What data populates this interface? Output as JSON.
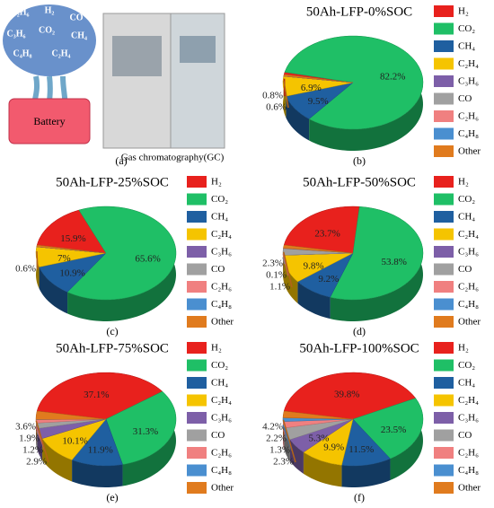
{
  "illustration": {
    "gases": [
      "C₂H₆",
      "H₂",
      "CO",
      "C₃H₆",
      "CO₂",
      "CH₄",
      "C₄H₈",
      "C₂H₄"
    ],
    "battery": "Battery",
    "instrument": "Gas chromatography(GC)",
    "panel": "(a)"
  },
  "chart_data": [
    {
      "type": "pie",
      "title": "50Ah-LFP-0%SOC",
      "panel": "(b)",
      "categories": [
        "H₂",
        "CO₂",
        "CH₄",
        "C₂H₄",
        "C₃H₆",
        "CO",
        "C₂H₆",
        "C₄H₈",
        "Other"
      ],
      "colors": [
        "#e8211d",
        "#1fbf66",
        "#1f5fa0",
        "#f5c400",
        "#7d5fa8",
        "#a0a0a0",
        "#f08080",
        "#4a8fd0",
        "#e07b1e"
      ],
      "values": [
        0.8,
        82.2,
        9.5,
        6.9,
        0,
        0,
        0,
        0,
        0.6
      ],
      "value_labels": [
        "0.8%",
        "82.2%",
        "9.5%",
        "6.9%",
        null,
        null,
        null,
        null,
        "0.6%"
      ]
    },
    {
      "type": "pie",
      "title": "50Ah-LFP-25%SOC",
      "panel": "(c)",
      "categories": [
        "H₂",
        "CO₂",
        "CH₄",
        "C₂H₄",
        "C₃H₆",
        "CO",
        "C₂H₆",
        "C₄H₈",
        "Other"
      ],
      "colors": [
        "#e8211d",
        "#1fbf66",
        "#1f5fa0",
        "#f5c400",
        "#7d5fa8",
        "#a0a0a0",
        "#f08080",
        "#4a8fd0",
        "#e07b1e"
      ],
      "values": [
        15.9,
        65.6,
        10.9,
        7,
        0,
        0,
        0,
        0,
        0.6
      ],
      "value_labels": [
        "15.9%",
        "65.6%",
        "10.9%",
        "7%",
        null,
        null,
        null,
        null,
        "0.6%"
      ]
    },
    {
      "type": "pie",
      "title": "50Ah-LFP-50%SOC",
      "panel": "(d)",
      "categories": [
        "H₂",
        "CO₂",
        "CH₄",
        "C₂H₄",
        "C₃H₆",
        "CO",
        "C₂H₆",
        "C₄H₈",
        "Other"
      ],
      "colors": [
        "#e8211d",
        "#1fbf66",
        "#1f5fa0",
        "#f5c400",
        "#7d5fa8",
        "#a0a0a0",
        "#f08080",
        "#4a8fd0",
        "#e07b1e"
      ],
      "values": [
        23.7,
        53.8,
        9.2,
        9.8,
        0,
        2.3,
        0.1,
        0,
        1.1
      ],
      "value_labels": [
        "23.7%",
        "53.8%",
        "9.2%",
        "9.8%",
        null,
        "2.3%",
        "0.1%",
        null,
        "1.1%"
      ]
    },
    {
      "type": "pie",
      "title": "50Ah-LFP-75%SOC",
      "panel": "(e)",
      "categories": [
        "H₂",
        "CO₂",
        "CH₄",
        "C₂H₄",
        "C₃H₆",
        "CO",
        "C₂H₆",
        "C₄H₈",
        "Other"
      ],
      "colors": [
        "#e8211d",
        "#1fbf66",
        "#1f5fa0",
        "#f5c400",
        "#7d5fa8",
        "#a0a0a0",
        "#f08080",
        "#4a8fd0",
        "#e07b1e"
      ],
      "values": [
        37.1,
        31.3,
        11.9,
        10.1,
        3.6,
        1.9,
        1.2,
        0,
        2.9
      ],
      "value_labels": [
        "37.1%",
        "31.3%",
        "11.9%",
        "10.1%",
        "3.6%",
        "1.9%",
        "1.2%",
        null,
        "2.9%"
      ]
    },
    {
      "type": "pie",
      "title": "50Ah-LFP-100%SOC",
      "panel": "(f)",
      "categories": [
        "H₂",
        "CO₂",
        "CH₄",
        "C₂H₄",
        "C₃H₆",
        "CO",
        "C₂H₆",
        "C₄H₈",
        "Other"
      ],
      "colors": [
        "#e8211d",
        "#1fbf66",
        "#1f5fa0",
        "#f5c400",
        "#7d5fa8",
        "#a0a0a0",
        "#f08080",
        "#4a8fd0",
        "#e07b1e"
      ],
      "values": [
        39.8,
        23.5,
        11.5,
        9.9,
        5.3,
        4.2,
        2.2,
        1.3,
        2.3
      ],
      "value_labels": [
        "39.8%",
        "23.5%",
        "11.5%",
        "9.9%",
        "5.3%",
        "4.2%",
        "2.2%",
        "1.3%",
        "2.3%"
      ]
    }
  ]
}
